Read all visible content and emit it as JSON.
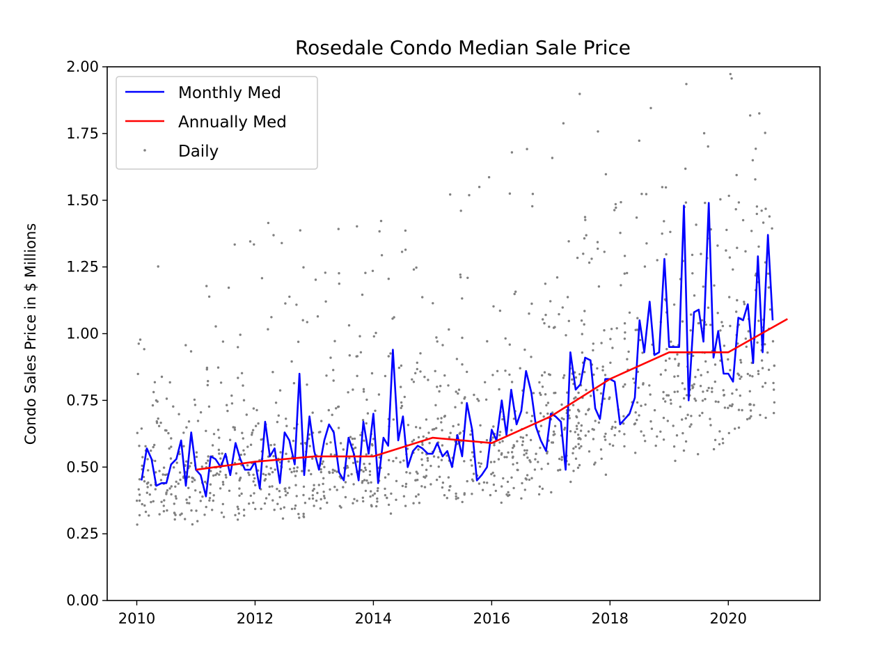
{
  "chart_data": {
    "type": "line",
    "title": "Rosedale Condo Median Sale Price",
    "xlabel": "",
    "ylabel": "Condo Sales Price in $ Millions",
    "xlim": [
      2009.5,
      2021.55
    ],
    "ylim": [
      0,
      2.0
    ],
    "x_ticks": [
      2010,
      2012,
      2014,
      2016,
      2018,
      2020
    ],
    "x_tick_labels": [
      "2010",
      "2012",
      "2014",
      "2016",
      "2018",
      "2020"
    ],
    "y_ticks": [
      0,
      0.25,
      0.5,
      0.75,
      1.0,
      1.25,
      1.5,
      1.75,
      2.0
    ],
    "y_tick_labels": [
      "0.00",
      "0.25",
      "0.50",
      "0.75",
      "1.00",
      "1.25",
      "1.50",
      "1.75",
      "2.00"
    ],
    "grid": false,
    "legend_position": "top-left",
    "series": [
      {
        "name": "Monthly Med",
        "type": "line",
        "color": "#0000ff",
        "points": [
          [
            2010.08,
            0.45
          ],
          [
            2010.17,
            0.57
          ],
          [
            2010.25,
            0.53
          ],
          [
            2010.33,
            0.43
          ],
          [
            2010.42,
            0.44
          ],
          [
            2010.5,
            0.44
          ],
          [
            2010.58,
            0.51
          ],
          [
            2010.67,
            0.53
          ],
          [
            2010.75,
            0.6
          ],
          [
            2010.83,
            0.43
          ],
          [
            2010.92,
            0.63
          ],
          [
            2011.0,
            0.49
          ],
          [
            2011.08,
            0.47
          ],
          [
            2011.17,
            0.39
          ],
          [
            2011.25,
            0.54
          ],
          [
            2011.33,
            0.53
          ],
          [
            2011.42,
            0.5
          ],
          [
            2011.5,
            0.55
          ],
          [
            2011.58,
            0.47
          ],
          [
            2011.67,
            0.59
          ],
          [
            2011.75,
            0.53
          ],
          [
            2011.83,
            0.49
          ],
          [
            2011.92,
            0.49
          ],
          [
            2012.0,
            0.52
          ],
          [
            2012.08,
            0.42
          ],
          [
            2012.17,
            0.67
          ],
          [
            2012.25,
            0.54
          ],
          [
            2012.33,
            0.57
          ],
          [
            2012.42,
            0.44
          ],
          [
            2012.5,
            0.63
          ],
          [
            2012.58,
            0.6
          ],
          [
            2012.67,
            0.51
          ],
          [
            2012.75,
            0.85
          ],
          [
            2012.83,
            0.47
          ],
          [
            2012.92,
            0.69
          ],
          [
            2013.0,
            0.56
          ],
          [
            2013.08,
            0.49
          ],
          [
            2013.17,
            0.6
          ],
          [
            2013.25,
            0.66
          ],
          [
            2013.33,
            0.63
          ],
          [
            2013.42,
            0.48
          ],
          [
            2013.5,
            0.45
          ],
          [
            2013.58,
            0.61
          ],
          [
            2013.67,
            0.55
          ],
          [
            2013.75,
            0.45
          ],
          [
            2013.83,
            0.67
          ],
          [
            2013.92,
            0.55
          ],
          [
            2014.0,
            0.7
          ],
          [
            2014.08,
            0.44
          ],
          [
            2014.17,
            0.61
          ],
          [
            2014.25,
            0.58
          ],
          [
            2014.33,
            0.94
          ],
          [
            2014.42,
            0.6
          ],
          [
            2014.5,
            0.69
          ],
          [
            2014.58,
            0.5
          ],
          [
            2014.67,
            0.56
          ],
          [
            2014.75,
            0.58
          ],
          [
            2014.83,
            0.57
          ],
          [
            2014.92,
            0.55
          ],
          [
            2015.0,
            0.55
          ],
          [
            2015.08,
            0.59
          ],
          [
            2015.17,
            0.54
          ],
          [
            2015.25,
            0.56
          ],
          [
            2015.33,
            0.5
          ],
          [
            2015.42,
            0.62
          ],
          [
            2015.5,
            0.54
          ],
          [
            2015.58,
            0.74
          ],
          [
            2015.67,
            0.64
          ],
          [
            2015.75,
            0.45
          ],
          [
            2015.83,
            0.47
          ],
          [
            2015.92,
            0.5
          ],
          [
            2016.0,
            0.64
          ],
          [
            2016.08,
            0.6
          ],
          [
            2016.17,
            0.75
          ],
          [
            2016.25,
            0.62
          ],
          [
            2016.33,
            0.79
          ],
          [
            2016.42,
            0.66
          ],
          [
            2016.5,
            0.71
          ],
          [
            2016.58,
            0.86
          ],
          [
            2016.67,
            0.78
          ],
          [
            2016.75,
            0.65
          ],
          [
            2016.83,
            0.6
          ],
          [
            2016.92,
            0.56
          ],
          [
            2017.0,
            0.7
          ],
          [
            2017.08,
            0.69
          ],
          [
            2017.17,
            0.67
          ],
          [
            2017.25,
            0.49
          ],
          [
            2017.33,
            0.93
          ],
          [
            2017.42,
            0.79
          ],
          [
            2017.5,
            0.81
          ],
          [
            2017.58,
            0.91
          ],
          [
            2017.67,
            0.9
          ],
          [
            2017.75,
            0.72
          ],
          [
            2017.83,
            0.68
          ],
          [
            2017.92,
            0.83
          ],
          [
            2018.0,
            0.83
          ],
          [
            2018.08,
            0.82
          ],
          [
            2018.17,
            0.66
          ],
          [
            2018.25,
            0.68
          ],
          [
            2018.33,
            0.7
          ],
          [
            2018.42,
            0.76
          ],
          [
            2018.5,
            1.05
          ],
          [
            2018.58,
            0.93
          ],
          [
            2018.67,
            1.12
          ],
          [
            2018.75,
            0.92
          ],
          [
            2018.83,
            0.93
          ],
          [
            2018.92,
            1.28
          ],
          [
            2019.0,
            0.95
          ],
          [
            2019.08,
            0.95
          ],
          [
            2019.17,
            0.95
          ],
          [
            2019.25,
            1.48
          ],
          [
            2019.33,
            0.75
          ],
          [
            2019.42,
            1.08
          ],
          [
            2019.5,
            1.09
          ],
          [
            2019.58,
            0.97
          ],
          [
            2019.67,
            1.49
          ],
          [
            2019.75,
            0.91
          ],
          [
            2019.83,
            1.01
          ],
          [
            2019.92,
            0.85
          ],
          [
            2020.0,
            0.85
          ],
          [
            2020.08,
            0.82
          ],
          [
            2020.17,
            1.06
          ],
          [
            2020.25,
            1.05
          ],
          [
            2020.33,
            1.11
          ],
          [
            2020.42,
            0.89
          ],
          [
            2020.5,
            1.29
          ],
          [
            2020.58,
            0.93
          ],
          [
            2020.67,
            1.37
          ],
          [
            2020.75,
            1.05
          ]
        ]
      },
      {
        "name": "Annually Med",
        "type": "line",
        "color": "#ff0000",
        "points": [
          [
            2011.0,
            0.49
          ],
          [
            2012.0,
            0.52
          ],
          [
            2013.0,
            0.54
          ],
          [
            2014.0,
            0.54
          ],
          [
            2015.0,
            0.61
          ],
          [
            2016.0,
            0.59
          ],
          [
            2017.0,
            0.69
          ],
          [
            2018.0,
            0.83
          ],
          [
            2019.0,
            0.93
          ],
          [
            2020.0,
            0.93
          ],
          [
            2021.0,
            1.055
          ]
        ]
      },
      {
        "name": "Daily",
        "type": "scatter",
        "color": "#808080",
        "generated": {
          "x_start": 2010.0,
          "x_end": 2020.8,
          "count": 1400,
          "y_min": 0.2,
          "y_max": 2.0
        }
      }
    ]
  }
}
